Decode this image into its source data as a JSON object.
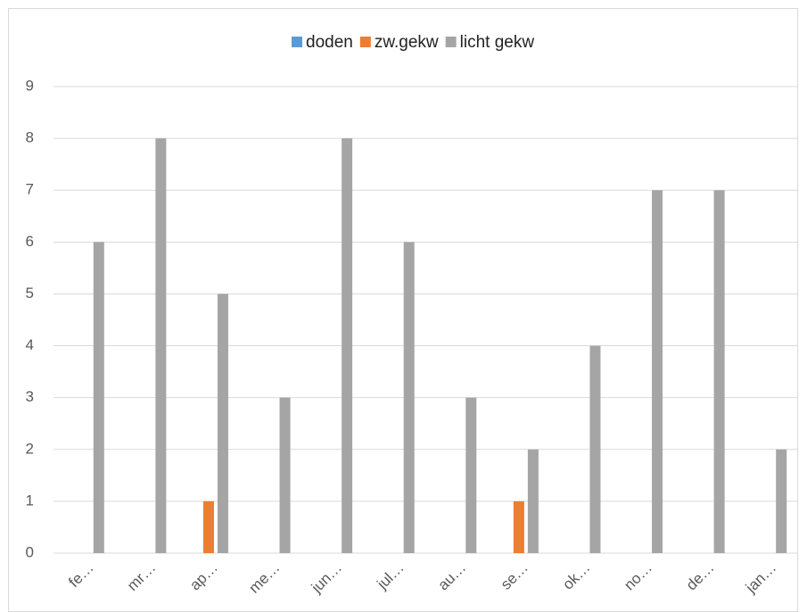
{
  "chart_data": {
    "type": "bar",
    "categories": [
      "fe…",
      "mr…",
      "ap…",
      "me…",
      "jun…",
      "jul…",
      "au…",
      "se…",
      "ok…",
      "no…",
      "de…",
      "jan…"
    ],
    "series": [
      {
        "name": "doden",
        "color": "#5b9bd5",
        "values": [
          0,
          0,
          0,
          0,
          0,
          0,
          0,
          0,
          0,
          0,
          0,
          0
        ]
      },
      {
        "name": "zw.gekw",
        "color": "#ed7d31",
        "values": [
          0,
          0,
          1,
          0,
          0,
          0,
          0,
          1,
          0,
          0,
          0,
          0
        ]
      },
      {
        "name": "licht gekw",
        "color": "#a5a5a5",
        "values": [
          6,
          8,
          5,
          3,
          8,
          6,
          3,
          2,
          4,
          7,
          7,
          2
        ]
      }
    ],
    "ylim": [
      0,
      9
    ],
    "yticks": [
      0,
      1,
      2,
      3,
      4,
      5,
      6,
      7,
      8,
      9
    ],
    "grid": true,
    "legend": "top"
  }
}
